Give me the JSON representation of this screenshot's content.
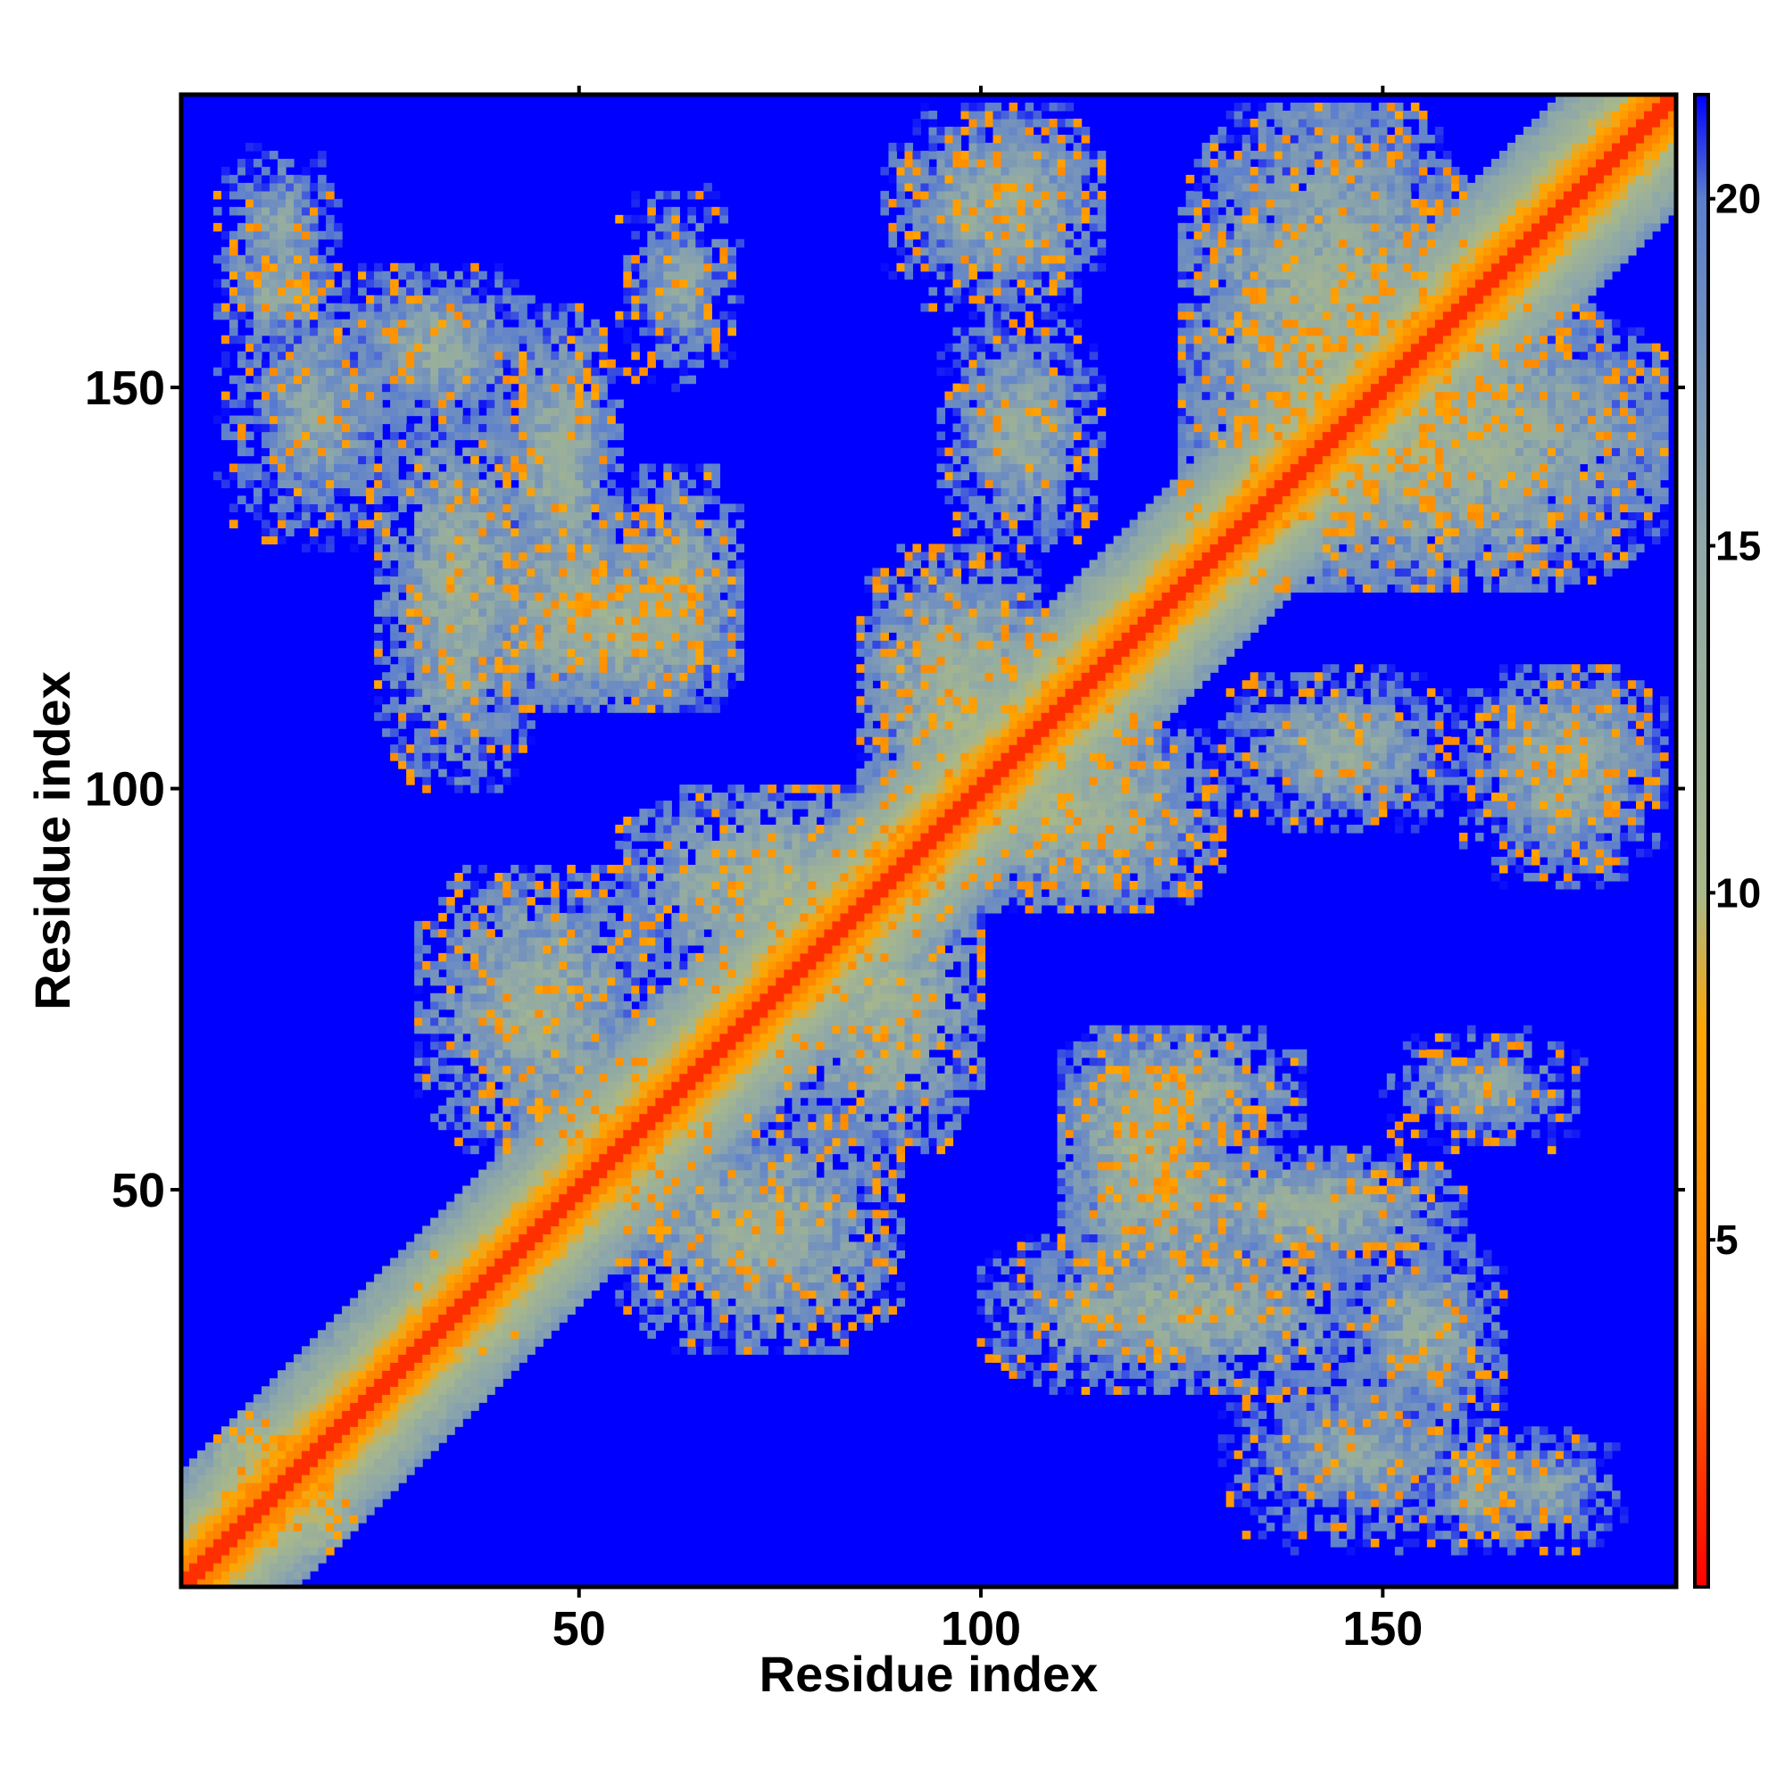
{
  "chart_data": {
    "type": "heatmap",
    "title": "",
    "xlabel": "Residue index",
    "ylabel": "Residue index",
    "xlim": [
      1,
      186
    ],
    "ylim": [
      1,
      186
    ],
    "n_residues": 186,
    "x_ticks": [
      50,
      100,
      150
    ],
    "x_tick_labels": [
      "50",
      "100",
      "150"
    ],
    "y_ticks": [
      50,
      100,
      150
    ],
    "y_tick_labels": [
      "50",
      "100",
      "150"
    ],
    "colorbar": {
      "range": [
        0,
        21.5
      ],
      "ticks": [
        5,
        10,
        15,
        20
      ],
      "tick_labels": [
        "5",
        "10",
        "15",
        "20"
      ],
      "colors": [
        "#ff0000",
        "#ff8000",
        "#ffa500",
        "#a8b88a",
        "#8fa8a8",
        "#5b7ecf",
        "#0000ff"
      ],
      "stops": [
        0,
        4,
        8,
        10,
        15,
        20,
        21.5
      ]
    },
    "grid": false,
    "legend": "colorbar-right",
    "description_of_values": "Pairwise residue distance map (Å); low values red/orange along diagonal and contact blocks, high values blue",
    "contact_blocks": [
      {
        "i": [
          5,
          22
        ],
        "j": [
          5,
          22
        ],
        "d": 6
      },
      {
        "i": [
          30,
          42
        ],
        "j": [
          30,
          42
        ],
        "d": 5
      },
      {
        "i": [
          30,
          60
        ],
        "j": [
          55,
          90
        ],
        "d": 12
      },
      {
        "i": [
          45,
          65
        ],
        "j": [
          45,
          65
        ],
        "d": 9
      },
      {
        "i": [
          35,
          65
        ],
        "j": [
          110,
          135
        ],
        "d": 12
      },
      {
        "i": [
          55,
          95
        ],
        "j": [
          75,
          100
        ],
        "d": 11
      },
      {
        "i": [
          55,
          70
        ],
        "j": [
          110,
          140
        ],
        "d": 12
      },
      {
        "i": [
          85,
          110
        ],
        "j": [
          100,
          130
        ],
        "d": 12
      },
      {
        "i": [
          95,
          125
        ],
        "j": [
          85,
          110
        ],
        "d": 11
      },
      {
        "i": [
          110,
          130
        ],
        "j": [
          40,
          70
        ],
        "d": 11
      },
      {
        "i": [
          120,
          160
        ],
        "j": [
          40,
          55
        ],
        "d": 12
      },
      {
        "i": [
          130,
          165
        ],
        "j": [
          5,
          30
        ],
        "d": 14
      },
      {
        "i": [
          155,
          170
        ],
        "j": [
          5,
          20
        ],
        "d": 13
      },
      {
        "i": [
          125,
          160
        ],
        "j": [
          125,
          185
        ],
        "d": 11
      },
      {
        "i": [
          140,
          185
        ],
        "j": [
          130,
          160
        ],
        "d": 12
      },
      {
        "i": [
          160,
          185
        ],
        "j": [
          95,
          115
        ],
        "d": 13
      },
      {
        "i": [
          88,
          115
        ],
        "j": [
          160,
          185
        ],
        "d": 13
      },
      {
        "i": [
          5,
          20
        ],
        "j": [
          160,
          180
        ],
        "d": 14
      },
      {
        "i": [
          20,
          45
        ],
        "j": [
          145,
          165
        ],
        "d": 13
      },
      {
        "i": [
          25,
          45
        ],
        "j": [
          100,
          150
        ],
        "d": 12
      },
      {
        "i": [
          130,
          160
        ],
        "j": [
          95,
          115
        ],
        "d": 13
      },
      {
        "i": [
          150,
          175
        ],
        "j": [
          55,
          70
        ],
        "d": 14
      }
    ]
  }
}
